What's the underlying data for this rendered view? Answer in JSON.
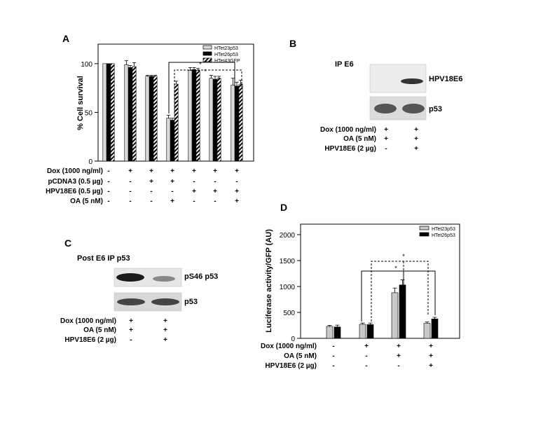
{
  "panel_labels": {
    "a": "A",
    "b": "B",
    "c": "C",
    "d": "D"
  },
  "panelA": {
    "ylabel": "% Cell survival",
    "row_labels": [
      "Dox (1000 ng/ml)",
      "pCDNA3 (0.5 µg)",
      "HPV18E6 (0.5 µg)",
      "OA (5 nM)"
    ],
    "signs": [
      [
        "-",
        "+",
        "+",
        "+",
        "+",
        "+",
        "+"
      ],
      [
        "-",
        "-",
        "+",
        "+",
        "-",
        "-",
        "-"
      ],
      [
        "-",
        "-",
        "-",
        "-",
        "+",
        "+",
        "+"
      ],
      [
        "-",
        "-",
        "-",
        "+",
        "-",
        "-",
        "+"
      ]
    ],
    "star": "*"
  },
  "panelB": {
    "title": "IP E6",
    "band_labels": [
      "HPV18E6",
      "p53"
    ],
    "row_labels": [
      "Dox (1000 ng/ml)",
      "OA (5 nM)",
      "HPV18E6 (2 µg)"
    ],
    "signs": [
      [
        "+",
        "+"
      ],
      [
        "+",
        "+"
      ],
      [
        "-",
        "+"
      ]
    ]
  },
  "panelC": {
    "title": "Post E6 IP p53",
    "band_labels": [
      "pS46 p53",
      "p53"
    ],
    "row_labels": [
      "Dox (1000 ng/ml)",
      "OA (5 nM)",
      "HPV18E6 (2 µg)"
    ],
    "signs": [
      [
        "+",
        "+"
      ],
      [
        "+",
        "+"
      ],
      [
        "-",
        "+"
      ]
    ]
  },
  "panelD": {
    "ylabel": "Luciferase activity/GFP (AU)",
    "row_labels": [
      "Dox (1000 ng/ml)",
      "OA (5 nM)",
      "HPV18E6 (2 µg)"
    ],
    "signs": [
      [
        "-",
        "+",
        "+",
        "+"
      ],
      [
        "-",
        "-",
        "+",
        "+"
      ],
      [
        "-",
        "-",
        "-",
        "+"
      ]
    ],
    "star": "*"
  },
  "chart_data": [
    {
      "type": "bar",
      "panel": "A",
      "ylabel": "% Cell survival",
      "ylim": [
        0,
        120
      ],
      "yticks": [
        0,
        50,
        100
      ],
      "groups": 7,
      "colors": {
        "HTet23p53": "#d9d9d9",
        "HTet26p53": "#000000",
        "HTet43GFP": "hatch"
      },
      "legend_position": "top-right",
      "series": [
        {
          "name": "HTet23p53",
          "values": [
            100,
            99,
            87,
            44,
            93,
            85,
            78
          ],
          "errors": [
            0,
            4,
            1,
            3,
            3,
            3,
            7
          ]
        },
        {
          "name": "HTet26p53",
          "values": [
            100,
            96,
            87,
            42,
            94,
            84,
            77
          ],
          "errors": [
            0,
            2,
            1,
            2,
            2,
            3,
            4
          ]
        },
        {
          "name": "HTet43GFP",
          "values": [
            100,
            97,
            87,
            79,
            93,
            85,
            79
          ],
          "errors": [
            0,
            4,
            1,
            3,
            2,
            2,
            4
          ]
        }
      ]
    },
    {
      "type": "bar",
      "panel": "D",
      "ylabel": "Luciferase activity/GFP (AU)",
      "ylim": [
        0,
        2000
      ],
      "yticks": [
        0,
        500,
        1000,
        1500,
        2000
      ],
      "groups": 4,
      "colors": {
        "HTet23p53": "#c8c8c8",
        "HTet26p53": "#000000"
      },
      "legend_position": "top-right",
      "series": [
        {
          "name": "HTet23p53",
          "values": [
            230,
            270,
            880,
            290
          ],
          "errors": [
            20,
            25,
            90,
            25
          ]
        },
        {
          "name": "HTet26p53",
          "values": [
            220,
            265,
            1030,
            375
          ],
          "errors": [
            35,
            30,
            100,
            30
          ]
        }
      ]
    }
  ]
}
